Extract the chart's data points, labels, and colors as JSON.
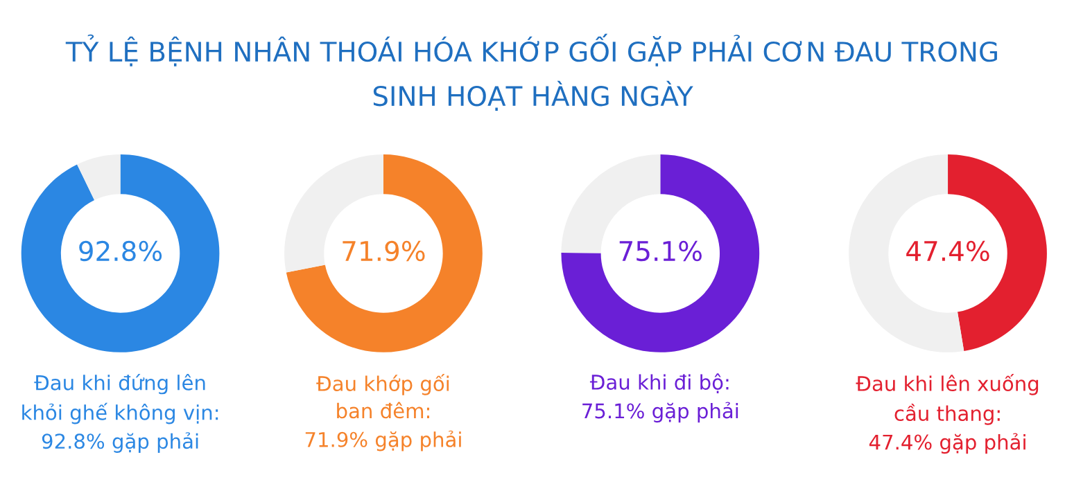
{
  "chart_data": [
    {
      "type": "donut",
      "title": "TỶ LỆ BỆNH NHÂN THOÁI HÓA KHỚP GỐI GẶP PHẢI CƠN ĐAU TRONG\nSINH HOẠT HÀNG NGÀY",
      "categories": [
        null,
        null
      ],
      "values": [
        92.8,
        7.2
      ],
      "colors": [
        "#2b87e3",
        "#f0f0f0"
      ],
      "value_labels": [
        "92.8%",
        null
      ],
      "annotations": [
        "Đau khi đứng lên\nkhỏi ghế không vịn:\n92.8% gặp phải"
      ]
    },
    {
      "type": "donut",
      "categories": [
        null,
        null
      ],
      "values": [
        71.9,
        28.1
      ],
      "colors": [
        "#f5822a",
        "#f0f0f0"
      ],
      "value_labels": [
        "71.9%",
        null
      ],
      "annotations": [
        "Đau khớp gối\nban đêm:\n71.9% gặp phải"
      ]
    },
    {
      "type": "donut",
      "categories": [
        null,
        null
      ],
      "values": [
        75.1,
        24.9
      ],
      "colors": [
        "#6a1fd6",
        "#f0f0f0"
      ],
      "value_labels": [
        "75.1%",
        null
      ],
      "annotations": [
        "Đau khi đi bộ:\n75.1% gặp phải"
      ]
    },
    {
      "type": "donut",
      "categories": [
        null,
        null
      ],
      "values": [
        47.4,
        52.6
      ],
      "colors": [
        "#e3202f",
        "#f0f0f0"
      ],
      "value_labels": [
        "47.4%",
        null
      ],
      "annotations": [
        "Đau khi lên xuống\ncầu thang:\n47.4% gặp phải"
      ]
    }
  ]
}
